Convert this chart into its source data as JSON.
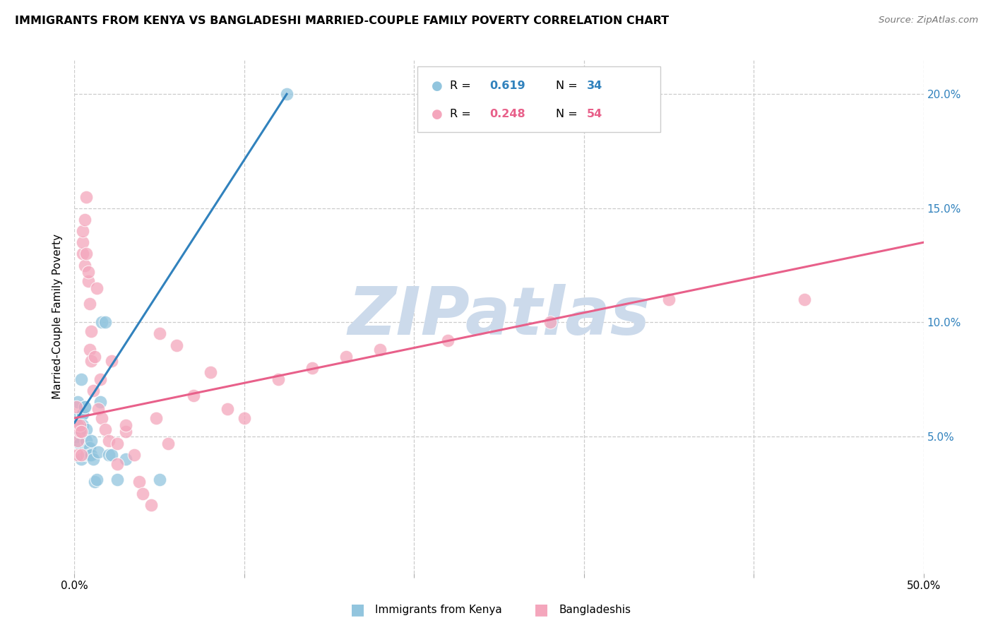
{
  "title": "IMMIGRANTS FROM KENYA VS BANGLADESHI MARRIED-COUPLE FAMILY POVERTY CORRELATION CHART",
  "source": "Source: ZipAtlas.com",
  "ylabel": "Married-Couple Family Poverty",
  "yticks": [
    0.05,
    0.1,
    0.15,
    0.2
  ],
  "ytick_labels": [
    "5.0%",
    "10.0%",
    "15.0%",
    "20.0%"
  ],
  "xticks": [
    0.0,
    0.1,
    0.2,
    0.3,
    0.4,
    0.5
  ],
  "xtick_labels": [
    "0.0%",
    "",
    "",
    "",
    "",
    "50.0%"
  ],
  "xlim": [
    0.0,
    0.5
  ],
  "ylim": [
    -0.01,
    0.215
  ],
  "legend_r1_val": "0.619",
  "legend_n1_val": "34",
  "legend_r2_val": "0.248",
  "legend_n2_val": "54",
  "legend_label1": "Immigrants from Kenya",
  "legend_label2": "Bangladeshis",
  "color_blue": "#92c5de",
  "color_pink": "#f4a6bc",
  "color_blue_dark": "#3182bd",
  "color_pink_dark": "#e8608a",
  "kenya_x": [
    0.001,
    0.001,
    0.002,
    0.003,
    0.003,
    0.004,
    0.004,
    0.005,
    0.005,
    0.005,
    0.006,
    0.006,
    0.007,
    0.007,
    0.007,
    0.008,
    0.008,
    0.009,
    0.009,
    0.01,
    0.01,
    0.011,
    0.012,
    0.013,
    0.014,
    0.015,
    0.016,
    0.018,
    0.02,
    0.022,
    0.025,
    0.03,
    0.05,
    0.125
  ],
  "kenya_y": [
    0.058,
    0.05,
    0.065,
    0.047,
    0.052,
    0.075,
    0.04,
    0.06,
    0.06,
    0.055,
    0.063,
    0.063,
    0.053,
    0.048,
    0.042,
    0.045,
    0.042,
    0.045,
    0.042,
    0.042,
    0.048,
    0.04,
    0.03,
    0.031,
    0.043,
    0.065,
    0.1,
    0.1,
    0.042,
    0.042,
    0.031,
    0.04,
    0.031,
    0.2
  ],
  "bangla_x": [
    0.001,
    0.002,
    0.002,
    0.002,
    0.003,
    0.003,
    0.004,
    0.004,
    0.005,
    0.005,
    0.005,
    0.006,
    0.006,
    0.007,
    0.007,
    0.008,
    0.008,
    0.009,
    0.009,
    0.01,
    0.01,
    0.011,
    0.012,
    0.013,
    0.014,
    0.015,
    0.016,
    0.018,
    0.02,
    0.022,
    0.025,
    0.025,
    0.03,
    0.03,
    0.035,
    0.038,
    0.04,
    0.045,
    0.048,
    0.05,
    0.055,
    0.06,
    0.07,
    0.08,
    0.09,
    0.1,
    0.12,
    0.14,
    0.16,
    0.18,
    0.22,
    0.28,
    0.35,
    0.43
  ],
  "bangla_y": [
    0.063,
    0.042,
    0.055,
    0.048,
    0.052,
    0.055,
    0.042,
    0.052,
    0.13,
    0.135,
    0.14,
    0.125,
    0.145,
    0.155,
    0.13,
    0.118,
    0.122,
    0.088,
    0.108,
    0.083,
    0.096,
    0.07,
    0.085,
    0.115,
    0.062,
    0.075,
    0.058,
    0.053,
    0.048,
    0.083,
    0.047,
    0.038,
    0.052,
    0.055,
    0.042,
    0.03,
    0.025,
    0.02,
    0.058,
    0.095,
    0.047,
    0.09,
    0.068,
    0.078,
    0.062,
    0.058,
    0.075,
    0.08,
    0.085,
    0.088,
    0.092,
    0.1,
    0.11,
    0.11
  ],
  "kenya_trend_x": [
    0.0,
    0.125
  ],
  "kenya_trend_y": [
    0.056,
    0.2
  ],
  "bangla_trend_x": [
    0.0,
    0.5
  ],
  "bangla_trend_y": [
    0.058,
    0.135
  ],
  "background_color": "#ffffff",
  "watermark_text": "ZIPatlas",
  "watermark_color": "#ccdaeb"
}
